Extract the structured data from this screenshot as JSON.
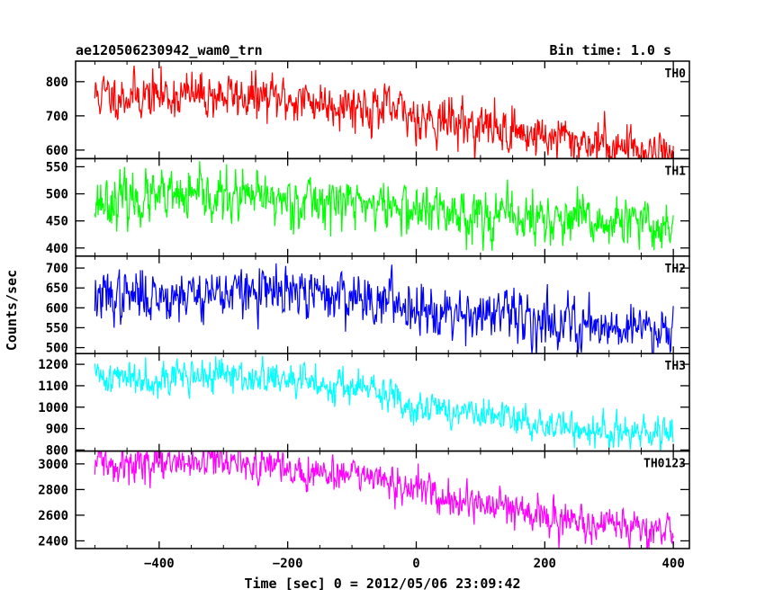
{
  "chart_data": {
    "type": "line",
    "title": "ae120506230942_wam0_trn",
    "subtitle": "Bin time: 1.0 s",
    "xlabel": "Time [sec] 0 = 2012/05/06 23:09:42",
    "ylabel": "Counts/sec",
    "xlim": [
      -500,
      400
    ],
    "xaxis_range": [
      -530,
      425
    ],
    "xticks": [
      -400,
      -200,
      0,
      200,
      400
    ],
    "xtick_labels": [
      "−400",
      "−200",
      "0",
      "200",
      "400"
    ],
    "grid": false,
    "panels": [
      {
        "name": "TH0",
        "color": "#ff0000",
        "ylim": [
          575,
          860
        ],
        "yticks": [
          600,
          700,
          800
        ],
        "trend": [
          [
            -500,
            760
          ],
          [
            -300,
            760
          ],
          [
            -100,
            735
          ],
          [
            0,
            700
          ],
          [
            100,
            670
          ],
          [
            200,
            640
          ],
          [
            300,
            615
          ],
          [
            400,
            590
          ]
        ],
        "noise": 32,
        "seed": 11
      },
      {
        "name": "TH1",
        "color": "#00ff00",
        "ylim": [
          385,
          565
        ],
        "yticks": [
          400,
          450,
          500,
          550
        ],
        "trend": [
          [
            -500,
            488
          ],
          [
            -300,
            493
          ],
          [
            -100,
            485
          ],
          [
            0,
            470
          ],
          [
            100,
            462
          ],
          [
            200,
            452
          ],
          [
            300,
            445
          ],
          [
            400,
            440
          ]
        ],
        "noise": 22,
        "seed": 23
      },
      {
        "name": "TH2",
        "color": "#0000ff",
        "ylim": [
          485,
          730
        ],
        "yticks": [
          500,
          550,
          600,
          650,
          700
        ],
        "trend": [
          [
            -500,
            625
          ],
          [
            -300,
            640
          ],
          [
            -100,
            630
          ],
          [
            0,
            605
          ],
          [
            100,
            585
          ],
          [
            200,
            570
          ],
          [
            300,
            555
          ],
          [
            400,
            550
          ]
        ],
        "noise": 30,
        "seed": 37
      },
      {
        "name": "TH3",
        "color": "#00ffff",
        "ylim": [
          795,
          1250
        ],
        "yticks": [
          800,
          900,
          1000,
          1100,
          1200
        ],
        "trend": [
          [
            -500,
            1140
          ],
          [
            -300,
            1145
          ],
          [
            -100,
            1100
          ],
          [
            0,
            1010
          ],
          [
            100,
            960
          ],
          [
            200,
            920
          ],
          [
            300,
            880
          ],
          [
            400,
            865
          ]
        ],
        "noise": 38,
        "seed": 41
      },
      {
        "name": "TH0123",
        "color": "#ff00ff",
        "ylim": [
          2340,
          3100
        ],
        "yticks": [
          2400,
          2600,
          2800,
          3000
        ],
        "trend": [
          [
            -500,
            2990
          ],
          [
            -300,
            3010
          ],
          [
            -100,
            2920
          ],
          [
            0,
            2780
          ],
          [
            100,
            2680
          ],
          [
            200,
            2600
          ],
          [
            300,
            2520
          ],
          [
            400,
            2470
          ]
        ],
        "noise": 65,
        "seed": 59
      }
    ]
  }
}
